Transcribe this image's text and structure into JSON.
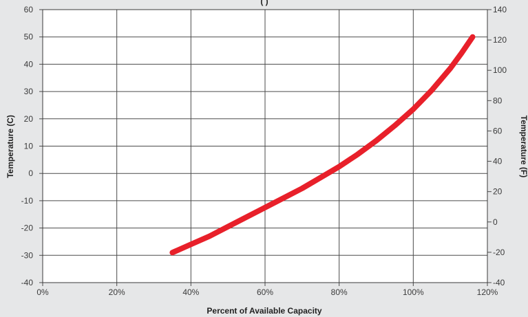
{
  "chart_data": {
    "type": "line",
    "title": "",
    "title_partial": "(                          )",
    "xlabel": "Percent of Available Capacity",
    "ylabel_left": "Temperature (C)",
    "ylabel_right": "Temperature (F)",
    "xlim": [
      0,
      120
    ],
    "ylim_left": [
      -40,
      60
    ],
    "ylim_right": [
      -40,
      140
    ],
    "x_ticks": [
      0,
      20,
      40,
      60,
      80,
      100,
      120
    ],
    "x_tick_labels": [
      "0%",
      "20%",
      "40%",
      "60%",
      "80%",
      "100%",
      "120%"
    ],
    "y_left_ticks": [
      -40,
      -30,
      -20,
      -10,
      0,
      10,
      20,
      30,
      40,
      50,
      60
    ],
    "y_left_tick_labels": [
      "-40",
      "-30",
      "-20",
      "-10",
      "0",
      "10",
      "20",
      "30",
      "40",
      "50",
      "60"
    ],
    "y_right_ticks": [
      -40,
      -20,
      0,
      20,
      40,
      60,
      80,
      100,
      120,
      140
    ],
    "y_right_tick_labels": [
      "-40",
      "-20",
      "0",
      "20",
      "40",
      "60",
      "80",
      "100",
      "120",
      "140"
    ],
    "grid": true,
    "series": [
      {
        "color": "#e8202a",
        "x": [
          35,
          40,
          45,
          50,
          55,
          60,
          65,
          70,
          75,
          80,
          85,
          90,
          95,
          100,
          105,
          110,
          113,
          116
        ],
        "y": [
          -29,
          -26,
          -23,
          -19.5,
          -16,
          -12.5,
          -9,
          -5.5,
          -1.5,
          2.5,
          7,
          12,
          17.5,
          23.5,
          30.5,
          38.5,
          44,
          50
        ]
      }
    ]
  }
}
